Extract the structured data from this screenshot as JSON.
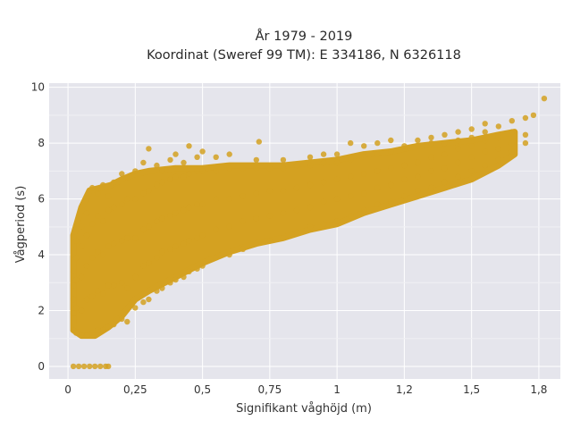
{
  "chart_data": {
    "type": "scatter",
    "title": "År 1979 - 2019",
    "subtitle": "Koordinat (Sweref 99 TM): E 334186, N 6326118",
    "xlabel": "Signifikant våghöjd (m)",
    "ylabel": "Vågperiod (s)",
    "xlim": [
      -0.07,
      1.83
    ],
    "ylim": [
      -0.45,
      10.15
    ],
    "xticks": [
      0,
      0.25,
      0.5,
      0.75,
      1,
      1.25,
      1.5,
      1.75
    ],
    "xtick_labels": [
      "0",
      "0,25",
      "0,5",
      "0,75",
      "1",
      "1,2",
      "1,5",
      "1,8"
    ],
    "yticks": [
      0,
      2,
      4,
      6,
      8,
      10
    ],
    "ytick_labels": [
      "0",
      "2",
      "4",
      "6",
      "8",
      "10"
    ],
    "grid": true,
    "legend": "none",
    "series": [
      {
        "color": "#D4A121",
        "points": [
          [
            0.02,
            0
          ],
          [
            0.04,
            0
          ],
          [
            0.06,
            0
          ],
          [
            0.08,
            0
          ],
          [
            0.1,
            0
          ],
          [
            0.12,
            0
          ],
          [
            0.14,
            0
          ],
          [
            0.15,
            0
          ],
          [
            0.02,
            1.3
          ],
          [
            0.02,
            1.9
          ],
          [
            0.02,
            2.4
          ],
          [
            0.02,
            2.9
          ],
          [
            0.02,
            3.4
          ],
          [
            0.03,
            1.2
          ],
          [
            0.03,
            2.1
          ],
          [
            0.03,
            3.1
          ],
          [
            0.03,
            3.9
          ],
          [
            0.03,
            4.5
          ],
          [
            0.05,
            1.1
          ],
          [
            0.05,
            2.0
          ],
          [
            0.05,
            3.2
          ],
          [
            0.05,
            4.3
          ],
          [
            0.05,
            5.0
          ],
          [
            0.07,
            1.1
          ],
          [
            0.07,
            2.4
          ],
          [
            0.07,
            3.6
          ],
          [
            0.07,
            4.7
          ],
          [
            0.07,
            5.5
          ],
          [
            0.09,
            1.2
          ],
          [
            0.09,
            2.5
          ],
          [
            0.09,
            3.9
          ],
          [
            0.09,
            5.1
          ],
          [
            0.09,
            6.4
          ],
          [
            0.11,
            1.3
          ],
          [
            0.11,
            2.7
          ],
          [
            0.11,
            4.1
          ],
          [
            0.11,
            5.4
          ],
          [
            0.11,
            6.2
          ],
          [
            0.13,
            1.3
          ],
          [
            0.13,
            2.6
          ],
          [
            0.13,
            4.0
          ],
          [
            0.13,
            5.2
          ],
          [
            0.13,
            6.5
          ],
          [
            0.15,
            1.4
          ],
          [
            0.15,
            2.9
          ],
          [
            0.15,
            4.3
          ],
          [
            0.15,
            5.6
          ],
          [
            0.15,
            6.1
          ],
          [
            0.17,
            1.5
          ],
          [
            0.17,
            2.9
          ],
          [
            0.17,
            4.4
          ],
          [
            0.17,
            5.7
          ],
          [
            0.17,
            6.6
          ],
          [
            0.2,
            1.7
          ],
          [
            0.2,
            3.0
          ],
          [
            0.2,
            4.5
          ],
          [
            0.2,
            5.8
          ],
          [
            0.2,
            6.9
          ],
          [
            0.22,
            1.6
          ],
          [
            0.22,
            2.8
          ],
          [
            0.22,
            4.6
          ],
          [
            0.22,
            6.0
          ],
          [
            0.25,
            2.1
          ],
          [
            0.25,
            3.2
          ],
          [
            0.25,
            4.6
          ],
          [
            0.25,
            6.0
          ],
          [
            0.25,
            7.0
          ],
          [
            0.28,
            2.3
          ],
          [
            0.28,
            3.6
          ],
          [
            0.28,
            4.9
          ],
          [
            0.28,
            6.2
          ],
          [
            0.28,
            7.3
          ],
          [
            0.3,
            2.4
          ],
          [
            0.3,
            3.7
          ],
          [
            0.3,
            5.0
          ],
          [
            0.3,
            6.3
          ],
          [
            0.3,
            7.8
          ],
          [
            0.33,
            2.7
          ],
          [
            0.33,
            3.9
          ],
          [
            0.33,
            5.2
          ],
          [
            0.33,
            6.5
          ],
          [
            0.33,
            7.2
          ],
          [
            0.35,
            2.8
          ],
          [
            0.35,
            4.1
          ],
          [
            0.35,
            5.3
          ],
          [
            0.35,
            6.6
          ],
          [
            0.35,
            7.0
          ],
          [
            0.38,
            3.0
          ],
          [
            0.38,
            4.2
          ],
          [
            0.38,
            5.4
          ],
          [
            0.38,
            6.7
          ],
          [
            0.38,
            7.4
          ],
          [
            0.4,
            3.1
          ],
          [
            0.4,
            4.3
          ],
          [
            0.4,
            5.5
          ],
          [
            0.4,
            6.8
          ],
          [
            0.4,
            7.6
          ],
          [
            0.43,
            3.2
          ],
          [
            0.43,
            4.4
          ],
          [
            0.43,
            5.6
          ],
          [
            0.43,
            6.8
          ],
          [
            0.43,
            7.3
          ],
          [
            0.45,
            3.4
          ],
          [
            0.45,
            4.5
          ],
          [
            0.45,
            5.7
          ],
          [
            0.45,
            6.9
          ],
          [
            0.45,
            7.9
          ],
          [
            0.48,
            3.5
          ],
          [
            0.48,
            4.6
          ],
          [
            0.48,
            5.8
          ],
          [
            0.48,
            7.0
          ],
          [
            0.48,
            7.5
          ],
          [
            0.5,
            3.6
          ],
          [
            0.5,
            4.7
          ],
          [
            0.5,
            5.8
          ],
          [
            0.5,
            7.0
          ],
          [
            0.5,
            7.7
          ],
          [
            0.55,
            3.9
          ],
          [
            0.55,
            4.9
          ],
          [
            0.55,
            6.0
          ],
          [
            0.55,
            7.0
          ],
          [
            0.55,
            7.5
          ],
          [
            0.6,
            4.0
          ],
          [
            0.6,
            5.0
          ],
          [
            0.6,
            6.0
          ],
          [
            0.6,
            7.1
          ],
          [
            0.6,
            7.6
          ],
          [
            0.65,
            4.2
          ],
          [
            0.65,
            5.2
          ],
          [
            0.65,
            6.1
          ],
          [
            0.65,
            7.1
          ],
          [
            0.7,
            4.4
          ],
          [
            0.7,
            5.3
          ],
          [
            0.7,
            6.2
          ],
          [
            0.7,
            7.1
          ],
          [
            0.7,
            7.4
          ],
          [
            0.71,
            8.05
          ],
          [
            0.75,
            4.5
          ],
          [
            0.75,
            5.4
          ],
          [
            0.75,
            6.3
          ],
          [
            0.75,
            7.1
          ],
          [
            0.8,
            4.6
          ],
          [
            0.8,
            5.5
          ],
          [
            0.8,
            6.3
          ],
          [
            0.8,
            7.1
          ],
          [
            0.8,
            7.4
          ],
          [
            0.85,
            4.8
          ],
          [
            0.85,
            5.6
          ],
          [
            0.85,
            6.4
          ],
          [
            0.85,
            7.2
          ],
          [
            0.9,
            5.0
          ],
          [
            0.9,
            5.7
          ],
          [
            0.9,
            6.5
          ],
          [
            0.9,
            7.2
          ],
          [
            0.9,
            7.5
          ],
          [
            0.95,
            5.1
          ],
          [
            0.95,
            5.9
          ],
          [
            0.95,
            6.6
          ],
          [
            0.95,
            7.3
          ],
          [
            0.95,
            7.6
          ],
          [
            1.0,
            5.2
          ],
          [
            1.0,
            6.0
          ],
          [
            1.0,
            6.7
          ],
          [
            1.0,
            7.3
          ],
          [
            1.0,
            7.6
          ],
          [
            1.05,
            5.4
          ],
          [
            1.05,
            6.1
          ],
          [
            1.05,
            6.8
          ],
          [
            1.05,
            7.4
          ],
          [
            1.05,
            8.0
          ],
          [
            1.1,
            5.6
          ],
          [
            1.1,
            6.2
          ],
          [
            1.1,
            6.9
          ],
          [
            1.1,
            7.5
          ],
          [
            1.1,
            7.9
          ],
          [
            1.15,
            5.8
          ],
          [
            1.15,
            6.4
          ],
          [
            1.15,
            7.0
          ],
          [
            1.15,
            7.6
          ],
          [
            1.15,
            8.0
          ],
          [
            1.2,
            5.9
          ],
          [
            1.2,
            6.5
          ],
          [
            1.2,
            7.1
          ],
          [
            1.2,
            7.7
          ],
          [
            1.2,
            8.1
          ],
          [
            1.25,
            6.1
          ],
          [
            1.25,
            6.7
          ],
          [
            1.25,
            7.2
          ],
          [
            1.25,
            7.8
          ],
          [
            1.25,
            7.9
          ],
          [
            1.3,
            6.3
          ],
          [
            1.3,
            6.8
          ],
          [
            1.3,
            7.3
          ],
          [
            1.3,
            7.9
          ],
          [
            1.3,
            8.1
          ],
          [
            1.35,
            6.4
          ],
          [
            1.35,
            7.0
          ],
          [
            1.35,
            7.5
          ],
          [
            1.35,
            8.0
          ],
          [
            1.35,
            8.2
          ],
          [
            1.4,
            6.6
          ],
          [
            1.4,
            7.1
          ],
          [
            1.4,
            7.6
          ],
          [
            1.4,
            8.0
          ],
          [
            1.4,
            8.3
          ],
          [
            1.45,
            6.8
          ],
          [
            1.45,
            7.3
          ],
          [
            1.45,
            7.8
          ],
          [
            1.45,
            8.1
          ],
          [
            1.45,
            8.4
          ],
          [
            1.5,
            7.0
          ],
          [
            1.5,
            7.5
          ],
          [
            1.5,
            7.9
          ],
          [
            1.5,
            8.2
          ],
          [
            1.5,
            8.5
          ],
          [
            1.55,
            7.2
          ],
          [
            1.55,
            7.7
          ],
          [
            1.55,
            8.1
          ],
          [
            1.55,
            8.4
          ],
          [
            1.55,
            8.7
          ],
          [
            1.6,
            7.4
          ],
          [
            1.6,
            7.8
          ],
          [
            1.6,
            8.2
          ],
          [
            1.6,
            8.6
          ],
          [
            1.65,
            7.7
          ],
          [
            1.65,
            8.0
          ],
          [
            1.65,
            8.4
          ],
          [
            1.65,
            8.8
          ],
          [
            1.7,
            8.0
          ],
          [
            1.7,
            8.3
          ],
          [
            1.7,
            8.9
          ],
          [
            1.73,
            9.0
          ],
          [
            1.77,
            9.6
          ]
        ]
      }
    ]
  }
}
